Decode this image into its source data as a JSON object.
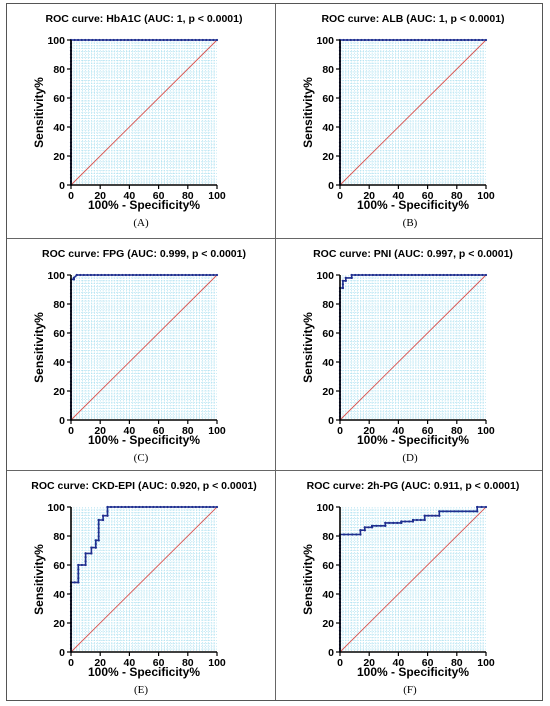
{
  "colors": {
    "curve": "#1f2f8f",
    "diagonal": "#d9534f",
    "grid": "#a9dff0",
    "axis": "#000000",
    "marker": "#1f2f8f"
  },
  "chart_data": [
    {
      "panel": "(A)",
      "type": "line",
      "title": "ROC curve: HbA1C (AUC: 1, p < 0.0001)",
      "xlabel": "100% - Specificity%",
      "ylabel": "Sensitivity%",
      "xlim": [
        0,
        100
      ],
      "ylim": [
        0,
        100
      ],
      "xticks": [
        0,
        20,
        40,
        60,
        80,
        100
      ],
      "yticks": [
        0,
        20,
        40,
        60,
        80,
        100
      ],
      "grid": true,
      "series": [
        {
          "x": [
            0,
            0,
            100
          ],
          "y": [
            0,
            100,
            100
          ]
        }
      ]
    },
    {
      "panel": "(B)",
      "type": "line",
      "title": "ROC curve: ALB (AUC: 1, p < 0.0001)",
      "xlabel": "100% - Specificity%",
      "ylabel": "Sensitivity%",
      "xlim": [
        0,
        100
      ],
      "ylim": [
        0,
        100
      ],
      "xticks": [
        0,
        20,
        40,
        60,
        80,
        100
      ],
      "yticks": [
        0,
        20,
        40,
        60,
        80,
        100
      ],
      "grid": true,
      "series": [
        {
          "x": [
            0,
            0,
            100
          ],
          "y": [
            0,
            100,
            100
          ]
        }
      ]
    },
    {
      "panel": "(C)",
      "type": "line",
      "title": "ROC curve: FPG (AUC: 0.999, p < 0.0001)",
      "xlabel": "100% - Specificity%",
      "ylabel": "Sensitivity%",
      "xlim": [
        0,
        100
      ],
      "ylim": [
        0,
        100
      ],
      "xticks": [
        0,
        20,
        40,
        60,
        80,
        100
      ],
      "yticks": [
        0,
        20,
        40,
        60,
        80,
        100
      ],
      "grid": true,
      "series": [
        {
          "x": [
            0,
            0,
            2,
            2,
            4,
            100
          ],
          "y": [
            0,
            97,
            97,
            98,
            100,
            100
          ]
        }
      ]
    },
    {
      "panel": "(D)",
      "type": "line",
      "title": "ROC curve: PNI (AUC: 0.997, p < 0.0001)",
      "xlabel": "100% - Specificity%",
      "ylabel": "Sensitivity%",
      "xlim": [
        0,
        100
      ],
      "ylim": [
        0,
        100
      ],
      "xticks": [
        0,
        20,
        40,
        60,
        80,
        100
      ],
      "yticks": [
        0,
        20,
        40,
        60,
        80,
        100
      ],
      "grid": true,
      "series": [
        {
          "x": [
            0,
            0,
            2,
            2,
            4,
            4,
            8,
            8,
            100
          ],
          "y": [
            0,
            91,
            91,
            96,
            96,
            98,
            98,
            100,
            100
          ]
        }
      ]
    },
    {
      "panel": "(E)",
      "type": "line",
      "title": "ROC curve: CKD-EPI (AUC: 0.920, p < 0.0001)",
      "xlabel": "100% - Specificity%",
      "ylabel": "Sensitivity%",
      "xlim": [
        0,
        100
      ],
      "ylim": [
        0,
        100
      ],
      "xticks": [
        0,
        20,
        40,
        60,
        80,
        100
      ],
      "yticks": [
        0,
        20,
        40,
        60,
        80,
        100
      ],
      "grid": true,
      "series": [
        {
          "x": [
            0,
            0,
            5,
            5,
            10,
            10,
            14,
            14,
            17,
            17,
            19,
            19,
            22,
            22,
            25,
            25,
            100
          ],
          "y": [
            0,
            48,
            48,
            60,
            60,
            68,
            68,
            72,
            72,
            77,
            77,
            91,
            91,
            94,
            94,
            100,
            100
          ]
        }
      ]
    },
    {
      "panel": "(F)",
      "type": "line",
      "title": "ROC curve: 2h-PG (AUC: 0.911, p < 0.0001)",
      "xlabel": "100% - Specificity%",
      "ylabel": "Sensitivity%",
      "xlim": [
        0,
        100
      ],
      "ylim": [
        0,
        100
      ],
      "xticks": [
        0,
        20,
        40,
        60,
        80,
        100
      ],
      "yticks": [
        0,
        20,
        40,
        60,
        80,
        100
      ],
      "grid": true,
      "series": [
        {
          "x": [
            0,
            0,
            14,
            14,
            17,
            17,
            22,
            22,
            31,
            31,
            42,
            42,
            50,
            50,
            58,
            58,
            68,
            68,
            94,
            94,
            100
          ],
          "y": [
            0,
            81,
            81,
            84,
            84,
            86,
            86,
            87,
            87,
            89,
            89,
            90,
            90,
            91,
            91,
            94,
            94,
            97,
            97,
            100,
            100
          ]
        }
      ]
    }
  ]
}
